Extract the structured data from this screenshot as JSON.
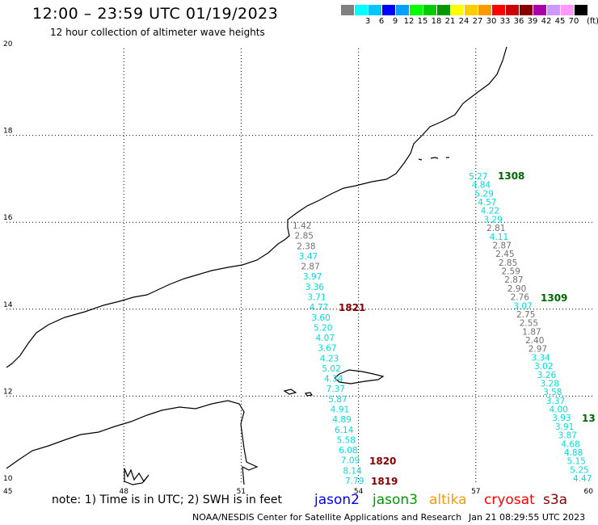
{
  "header": {
    "title": "12:00 – 23:59 UTC 01/19/2023",
    "subtitle": "12 hour collection of altimeter wave heights"
  },
  "legend": {
    "unit": "(ft)",
    "items": [
      {
        "label": "",
        "color": "#808080"
      },
      {
        "label": "3",
        "color": "#00ffff"
      },
      {
        "label": "6",
        "color": "#00c8ff"
      },
      {
        "label": "9",
        "color": "#0000ff"
      },
      {
        "label": "12",
        "color": "#00a0ff"
      },
      {
        "label": "15",
        "color": "#00ff00"
      },
      {
        "label": "18",
        "color": "#00cc00"
      },
      {
        "label": "21",
        "color": "#009900"
      },
      {
        "label": "24",
        "color": "#ffff00"
      },
      {
        "label": "27",
        "color": "#ffcc00"
      },
      {
        "label": "30",
        "color": "#ff9900"
      },
      {
        "label": "33",
        "color": "#ff0000"
      },
      {
        "label": "36",
        "color": "#cc0000"
      },
      {
        "label": "39",
        "color": "#880000"
      },
      {
        "label": "42",
        "color": "#aa00aa"
      },
      {
        "label": "45",
        "color": "#cc99ff"
      },
      {
        "label": "70",
        "color": "#ff99ff"
      },
      {
        "label": "",
        "color": "#000000"
      }
    ]
  },
  "axes": {
    "lon_ticks": [
      "45",
      "48",
      "51",
      "54",
      "57",
      "60"
    ],
    "lat_ticks": [
      "20",
      "18",
      "16",
      "14",
      "12",
      "10"
    ]
  },
  "passes": [
    {
      "id": "1308",
      "color": "#006600"
    },
    {
      "id": "1309",
      "color": "#006600"
    },
    {
      "id": "13",
      "color": "#006600"
    },
    {
      "id": "1821",
      "color": "#880000"
    },
    {
      "id": "1820",
      "color": "#880000"
    },
    {
      "id": "1819",
      "color": "#880000"
    }
  ],
  "track_east": [
    {
      "v": "5.27",
      "c": "#00dddd"
    },
    {
      "v": "4.84",
      "c": "#00dddd"
    },
    {
      "v": "5.29",
      "c": "#00dddd"
    },
    {
      "v": "4.57",
      "c": "#00dddd"
    },
    {
      "v": "4.22",
      "c": "#00dddd"
    },
    {
      "v": "3.29",
      "c": "#00dddd"
    },
    {
      "v": "2.81",
      "c": "#707070"
    },
    {
      "v": "4.11",
      "c": "#00dddd"
    },
    {
      "v": "2.87",
      "c": "#707070"
    },
    {
      "v": "2.45",
      "c": "#707070"
    },
    {
      "v": "2.85",
      "c": "#707070"
    },
    {
      "v": "2.59",
      "c": "#707070"
    },
    {
      "v": "2.87",
      "c": "#707070"
    },
    {
      "v": "2.90",
      "c": "#707070"
    },
    {
      "v": "2.76",
      "c": "#707070"
    },
    {
      "v": "3.07",
      "c": "#00dddd"
    },
    {
      "v": "2.75",
      "c": "#707070"
    },
    {
      "v": "2.55",
      "c": "#707070"
    },
    {
      "v": "1.87",
      "c": "#707070"
    },
    {
      "v": "2.40",
      "c": "#707070"
    },
    {
      "v": "2.97",
      "c": "#707070"
    },
    {
      "v": "3.34",
      "c": "#00dddd"
    },
    {
      "v": "3.02",
      "c": "#00dddd"
    },
    {
      "v": "3.26",
      "c": "#00dddd"
    },
    {
      "v": "3.28",
      "c": "#00dddd"
    },
    {
      "v": "3.58",
      "c": "#00dddd"
    },
    {
      "v": "3.37",
      "c": "#00dddd"
    },
    {
      "v": "4.00",
      "c": "#00dddd"
    },
    {
      "v": "3.93",
      "c": "#00dddd"
    },
    {
      "v": "3.91",
      "c": "#00dddd"
    },
    {
      "v": "3.87",
      "c": "#00dddd"
    },
    {
      "v": "4.68",
      "c": "#00dddd"
    },
    {
      "v": "4.88",
      "c": "#00dddd"
    },
    {
      "v": "5.15",
      "c": "#00dddd"
    },
    {
      "v": "5.25",
      "c": "#00dddd"
    },
    {
      "v": "4.47",
      "c": "#00dddd"
    }
  ],
  "track_west": [
    {
      "v": "1.42",
      "c": "#707070"
    },
    {
      "v": "2.85",
      "c": "#707070"
    },
    {
      "v": "2.38",
      "c": "#707070"
    },
    {
      "v": "3.47",
      "c": "#00dddd"
    },
    {
      "v": "2.87",
      "c": "#707070"
    },
    {
      "v": "3.97",
      "c": "#00dddd"
    },
    {
      "v": "3.36",
      "c": "#00dddd"
    },
    {
      "v": "3.71",
      "c": "#00dddd"
    },
    {
      "v": "4.77",
      "c": "#00dddd"
    },
    {
      "v": "3.60",
      "c": "#00dddd"
    },
    {
      "v": "5.20",
      "c": "#00dddd"
    },
    {
      "v": "4.07",
      "c": "#00dddd"
    },
    {
      "v": "3.67",
      "c": "#00dddd"
    },
    {
      "v": "4.23",
      "c": "#00dddd"
    },
    {
      "v": "5.02",
      "c": "#00dddd"
    },
    {
      "v": "4.34",
      "c": "#00dddd"
    },
    {
      "v": "7.37",
      "c": "#00dddd"
    },
    {
      "v": "5.87",
      "c": "#00dddd"
    },
    {
      "v": "4.91",
      "c": "#00dddd"
    },
    {
      "v": "4.89",
      "c": "#00dddd"
    },
    {
      "v": "6.14",
      "c": "#00dddd"
    },
    {
      "v": "5.58",
      "c": "#00dddd"
    },
    {
      "v": "6.08",
      "c": "#00dddd"
    },
    {
      "v": "7.09",
      "c": "#00dddd"
    },
    {
      "v": "8.14",
      "c": "#00dddd"
    },
    {
      "v": "7.79",
      "c": "#00dddd"
    }
  ],
  "footer": {
    "note": "note: 1) Time is in UTC; 2) SWH is in feet",
    "satellites": [
      {
        "name": "jason2",
        "color": "#0000ff"
      },
      {
        "name": "jason3",
        "color": "#009900"
      },
      {
        "name": "altika",
        "color": "#ff9900"
      },
      {
        "name": "cryosat",
        "color": "#ff0000"
      },
      {
        "name": "s3a",
        "color": "#880000"
      }
    ],
    "center": "NOAA/NESDIS Center for Satellite Applications and Research",
    "timestamp": "Jan 21 08:29:55 UTC 2023"
  }
}
